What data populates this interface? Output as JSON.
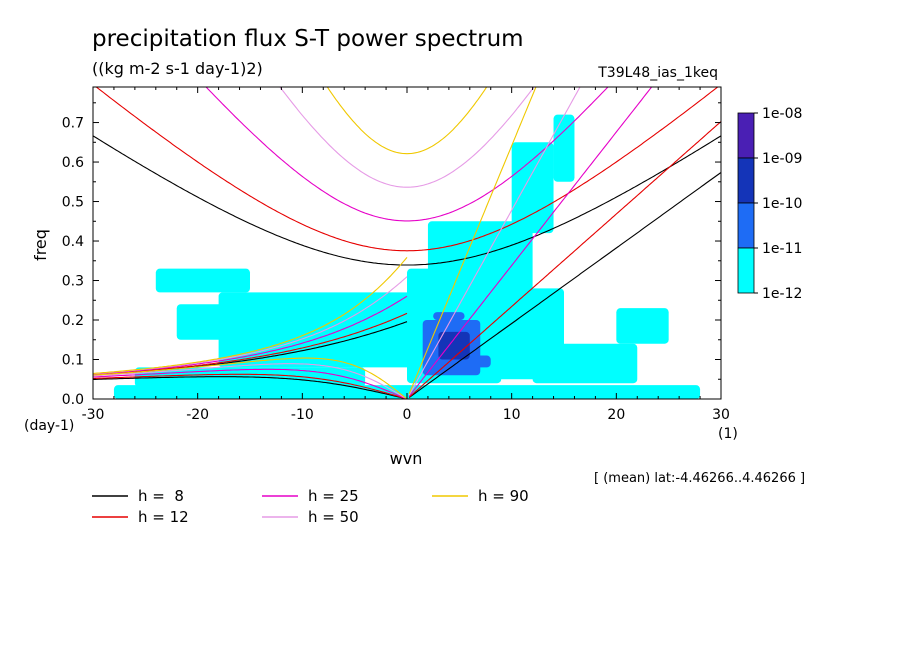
{
  "chart_data": {
    "type": "heatmap",
    "title": "precipitation flux S-T power spectrum",
    "subtitle": "((kg m-2 s-1 day-1)2)",
    "run_label": "T39L48_ias_1keq",
    "xlabel": "wvn",
    "ylabel": "freq",
    "x_unit": "(1)",
    "y_unit": "(day-1)",
    "xlim": [
      -30,
      30
    ],
    "ylim": [
      0,
      0.79
    ],
    "x_ticks": [
      -30,
      -20,
      -10,
      0,
      10,
      20,
      30
    ],
    "y_ticks": [
      0.0,
      0.1,
      0.2,
      0.3,
      0.4,
      0.5,
      0.6,
      0.7
    ],
    "x_tick_labels": [
      "-30",
      "-20",
      "-10",
      "0",
      "10",
      "20",
      "30"
    ],
    "y_tick_labels": [
      "0.0",
      "0.1",
      "0.2",
      "0.3",
      "0.4",
      "0.5",
      "0.6",
      "0.7"
    ],
    "colorbar": {
      "labels": [
        "1e-08",
        "1e-09",
        "1e-10",
        "1e-11",
        "1e-12"
      ],
      "colors": [
        "#4a1fb4",
        "#1434b8",
        "#1e6cf5",
        "#00ffff"
      ]
    },
    "dispersion_curves": [
      {
        "name": "h =  8",
        "h": 8,
        "color": "#000000"
      },
      {
        "name": "h = 12",
        "h": 12,
        "color": "#e60000"
      },
      {
        "name": "h = 25",
        "h": 25,
        "color": "#e600c8"
      },
      {
        "name": "h = 50",
        "h": 50,
        "color": "#e69be6"
      },
      {
        "name": "h = 90",
        "h": 90,
        "color": "#f0c800"
      }
    ],
    "spectrum_patches": [
      {
        "level": 0,
        "wvn": [
          -28,
          28
        ],
        "freq": [
          0.0,
          0.035
        ]
      },
      {
        "level": 0,
        "wvn": [
          -26,
          -4
        ],
        "freq": [
          0.03,
          0.08
        ]
      },
      {
        "level": 0,
        "wvn": [
          -18,
          2
        ],
        "freq": [
          0.08,
          0.27
        ]
      },
      {
        "level": 0,
        "wvn": [
          -22,
          -12
        ],
        "freq": [
          0.15,
          0.24
        ]
      },
      {
        "level": 0,
        "wvn": [
          -24,
          -15
        ],
        "freq": [
          0.27,
          0.33
        ]
      },
      {
        "level": 0,
        "wvn": [
          0,
          9
        ],
        "freq": [
          0.04,
          0.33
        ]
      },
      {
        "level": 0,
        "wvn": [
          2,
          12
        ],
        "freq": [
          0.25,
          0.45
        ]
      },
      {
        "level": 0,
        "wvn": [
          8,
          15
        ],
        "freq": [
          0.05,
          0.28
        ]
      },
      {
        "level": 0,
        "wvn": [
          12,
          22
        ],
        "freq": [
          0.04,
          0.14
        ]
      },
      {
        "level": 0,
        "wvn": [
          10,
          14
        ],
        "freq": [
          0.42,
          0.65
        ]
      },
      {
        "level": 0,
        "wvn": [
          14,
          16
        ],
        "freq": [
          0.55,
          0.72
        ]
      },
      {
        "level": 0,
        "wvn": [
          20,
          25
        ],
        "freq": [
          0.14,
          0.23
        ]
      },
      {
        "level": 1,
        "wvn": [
          1.5,
          7
        ],
        "freq": [
          0.06,
          0.2
        ]
      },
      {
        "level": 1,
        "wvn": [
          2.5,
          5.5
        ],
        "freq": [
          0.2,
          0.22
        ]
      },
      {
        "level": 1,
        "wvn": [
          6,
          8
        ],
        "freq": [
          0.08,
          0.11
        ]
      },
      {
        "level": 2,
        "wvn": [
          3,
          6
        ],
        "freq": [
          0.1,
          0.17
        ]
      }
    ]
  },
  "footer_note": "[ (mean) lat:-4.46266..4.46266 ]"
}
